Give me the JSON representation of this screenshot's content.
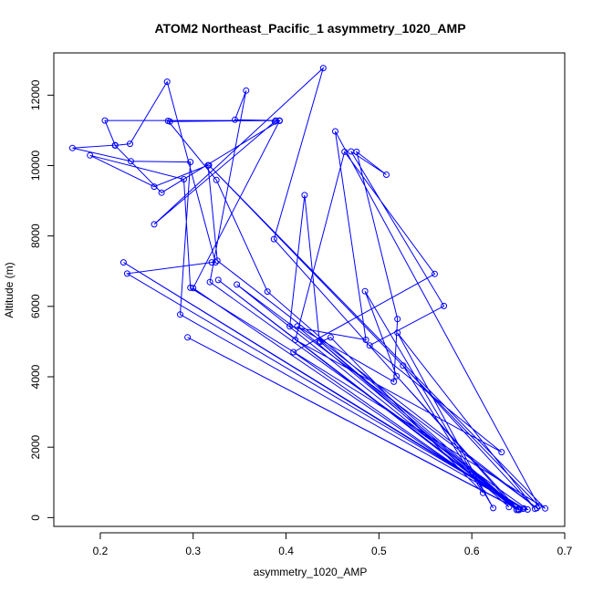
{
  "chart_data": {
    "type": "line",
    "title": "ATOM2 Northeast_Pacific_1 asymmetry_1020_AMP",
    "xlabel": "asymmetry_1020_AMP",
    "ylabel": "Altitude (m)",
    "xlim": [
      0.15,
      0.7
    ],
    "ylim": [
      -250,
      13200
    ],
    "xticks": [
      0.2,
      0.3,
      0.4,
      0.5,
      0.6,
      0.7
    ],
    "xtick_labels": [
      "0.2",
      "0.3",
      "0.4",
      "0.5",
      "0.6",
      "0.7"
    ],
    "yticks": [
      0,
      2000,
      4000,
      6000,
      8000,
      10000,
      12000
    ],
    "ytick_labels": [
      "0",
      "2000",
      "4000",
      "6000",
      "8000",
      "10000",
      "12000"
    ],
    "marker": "open-circle",
    "grid": false,
    "color": "#0000ff",
    "series": [
      {
        "values": [
          [
            0.65,
            230
          ],
          [
            0.294,
            5120
          ],
          [
            0.65,
            240
          ],
          [
            0.3,
            6520
          ],
          [
            0.393,
            11270
          ],
          [
            0.266,
            9230
          ],
          [
            0.216,
            10570
          ],
          [
            0.232,
            10620
          ],
          [
            0.272,
            12380
          ],
          [
            0.324,
            7250
          ],
          [
            0.32,
            7250
          ],
          [
            0.229,
            6930
          ],
          [
            0.656,
            260
          ],
          [
            0.225,
            7250
          ],
          [
            0.655,
            250
          ],
          [
            0.286,
            5770
          ],
          [
            0.297,
            10100
          ],
          [
            0.233,
            10120
          ],
          [
            0.17,
            10500
          ],
          [
            0.216,
            10580
          ],
          [
            0.205,
            11280
          ],
          [
            0.389,
            11280
          ],
          [
            0.275,
            11250
          ],
          [
            0.273,
            11270
          ],
          [
            0.325,
            9590
          ],
          [
            0.38,
            6420
          ],
          [
            0.651,
            220
          ],
          [
            0.66,
            230
          ],
          [
            0.318,
            6690
          ],
          [
            0.357,
            12130
          ],
          [
            0.345,
            11300
          ],
          [
            0.393,
            11280
          ],
          [
            0.388,
            11250
          ],
          [
            0.258,
            8330
          ],
          [
            0.44,
            12770
          ],
          [
            0.387,
            7910
          ],
          [
            0.648,
            220
          ],
          [
            0.327,
            6750
          ],
          [
            0.65,
            220
          ],
          [
            0.347,
            6620
          ],
          [
            0.67,
            270
          ],
          [
            0.326,
            7300
          ],
          [
            0.316,
            10010
          ],
          [
            0.258,
            9400
          ],
          [
            0.189,
            10290
          ],
          [
            0.29,
            9610
          ],
          [
            0.297,
            6530
          ],
          [
            0.679,
            260
          ],
          [
            0.317,
            10010
          ],
          [
            0.672,
            330
          ],
          [
            0.453,
            10970
          ],
          [
            0.486,
            5050
          ],
          [
            0.404,
            5430
          ],
          [
            0.42,
            9160
          ],
          [
            0.436,
            5010
          ],
          [
            0.65,
            230
          ],
          [
            0.408,
            4700
          ],
          [
            0.56,
            6920
          ],
          [
            0.463,
            10390
          ],
          [
            0.41,
            5050
          ],
          [
            0.632,
            1860
          ],
          [
            0.49,
            4890
          ],
          [
            0.57,
            6010
          ],
          [
            0.47,
            10400
          ],
          [
            0.508,
            9740
          ],
          [
            0.476,
            10390
          ],
          [
            0.52,
            5640
          ],
          [
            0.516,
            3860
          ],
          [
            0.412,
            5430
          ],
          [
            0.65,
            220
          ],
          [
            0.519,
            4020
          ],
          [
            0.485,
            6430
          ],
          [
            0.623,
            270
          ],
          [
            0.52,
            5250
          ],
          [
            0.668,
            250
          ],
          [
            0.526,
            4320
          ],
          [
            0.612,
            700
          ],
          [
            0.448,
            5120
          ],
          [
            0.437,
            4990
          ],
          [
            0.64,
            300
          ]
        ]
      }
    ]
  }
}
